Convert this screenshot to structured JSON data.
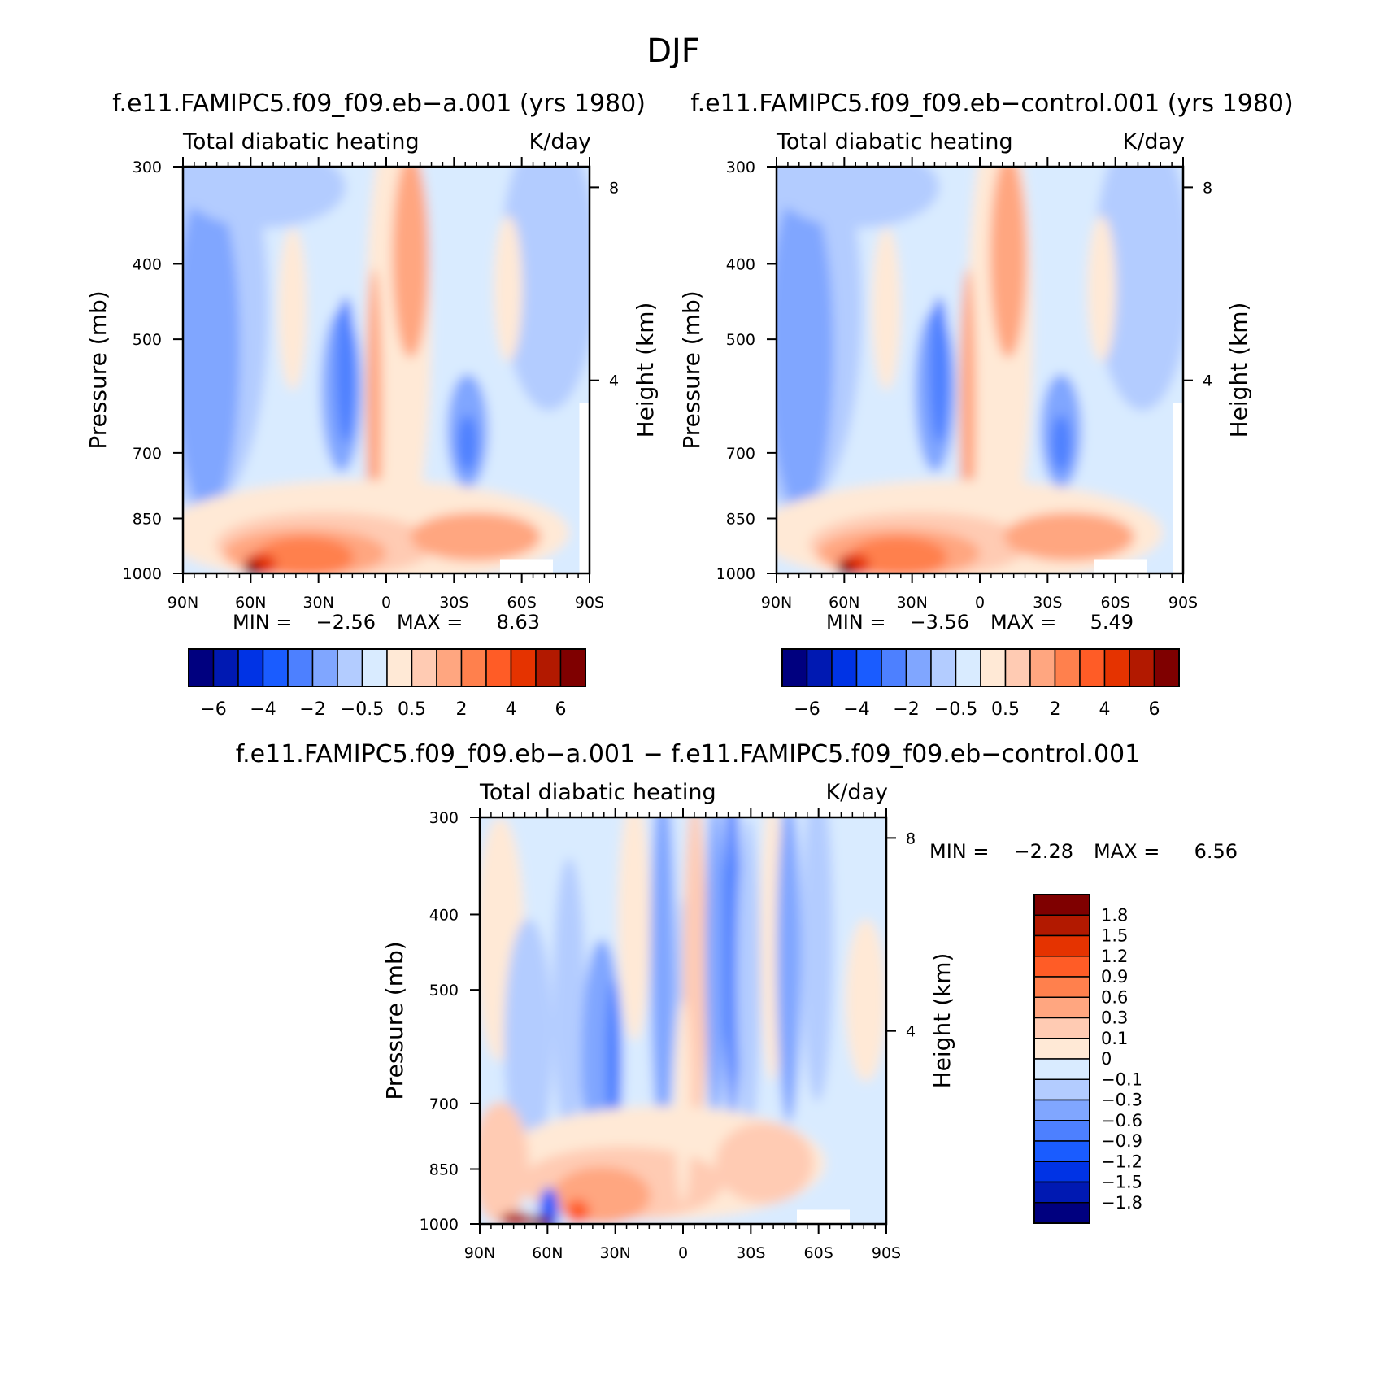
{
  "figure_title": "DJF",
  "colors": {
    "cbar_full": [
      "#00007f",
      "#0019b2",
      "#0033e5",
      "#1a5cff",
      "#4d80ff",
      "#80a6ff",
      "#b3ccff",
      "#d9ebff",
      "#ffe9d6",
      "#ffcbb3",
      "#ffa680",
      "#ff804d",
      "#ff5c26",
      "#e53300",
      "#b21900",
      "#7f0000"
    ],
    "cbar_diff": [
      "#7f0000",
      "#b21900",
      "#e53300",
      "#ff5c26",
      "#ff804d",
      "#ffa680",
      "#ffcbb3",
      "#ffe9d6",
      "#d9ebff",
      "#b3ccff",
      "#80a6ff",
      "#4d80ff",
      "#1a5cff",
      "#0033e5",
      "#0019b2",
      "#00007f"
    ]
  },
  "panels": {
    "a": {
      "title": "f.e11.FAMIPC5.f09_f09.eb−a.001 (yrs 1980)",
      "left_string": "Total diabatic heating",
      "right_string": "K/day",
      "ylabel": "Pressure (mb)",
      "ylabel_right": "Height (km)",
      "min_label": "MIN =",
      "min_value": "−2.56",
      "max_label": "MAX =",
      "max_value": "8.63"
    },
    "b": {
      "title": "f.e11.FAMIPC5.f09_f09.eb−control.001 (yrs 1980)",
      "left_string": "Total diabatic heating",
      "right_string": "K/day",
      "ylabel": "Pressure (mb)",
      "ylabel_right": "Height (km)",
      "min_label": "MIN =",
      "min_value": "−3.56",
      "max_label": "MAX =",
      "max_value": "5.49"
    },
    "c": {
      "title": "f.e11.FAMIPC5.f09_f09.eb−a.001 − f.e11.FAMIPC5.f09_f09.eb−control.001",
      "left_string": "Total diabatic heating",
      "right_string": "K/day",
      "ylabel": "Pressure (mb)",
      "ylabel_right": "Height (km)",
      "min_label": "MIN =",
      "min_value": "−2.28",
      "max_label": "MAX =",
      "max_value": "6.56"
    }
  },
  "chart_data": [
    {
      "type": "heatmap",
      "title": "f.e11.FAMIPC5.f09_f09.eb−a.001 (yrs 1980)",
      "xlabel": "",
      "ylabel": "Pressure (mb)",
      "ylabel_right": "Height (km)",
      "x_ticks": [
        "90N",
        "60N",
        "30N",
        "0",
        "30S",
        "60S",
        "90S"
      ],
      "y_ticks": [
        "300",
        "400",
        "500",
        "700",
        "850",
        "1000"
      ],
      "y_right_ticks": [
        "8",
        "4"
      ],
      "x_range": [
        90,
        -90
      ],
      "y_range": [
        1000,
        300
      ],
      "y_scale": "log",
      "levels": [
        "−6",
        "−4",
        "−2",
        "−0.5",
        "0.5",
        "2",
        "4",
        "6"
      ],
      "units": "K/day",
      "min": -2.56,
      "max": 8.63,
      "grid": false,
      "legend": "bottom"
    },
    {
      "type": "heatmap",
      "title": "f.e11.FAMIPC5.f09_f09.eb−control.001 (yrs 1980)",
      "xlabel": "",
      "ylabel": "Pressure (mb)",
      "ylabel_right": "Height (km)",
      "x_ticks": [
        "90N",
        "60N",
        "30N",
        "0",
        "30S",
        "60S",
        "90S"
      ],
      "y_ticks": [
        "300",
        "400",
        "500",
        "700",
        "850",
        "1000"
      ],
      "y_right_ticks": [
        "8",
        "4"
      ],
      "x_range": [
        90,
        -90
      ],
      "y_range": [
        1000,
        300
      ],
      "y_scale": "log",
      "levels": [
        "−6",
        "−4",
        "−2",
        "−0.5",
        "0.5",
        "2",
        "4",
        "6"
      ],
      "units": "K/day",
      "min": -3.56,
      "max": 5.49,
      "grid": false,
      "legend": "bottom"
    },
    {
      "type": "heatmap",
      "title": "f.e11.FAMIPC5.f09_f09.eb−a.001 − f.e11.FAMIPC5.f09_f09.eb−control.001",
      "xlabel": "",
      "ylabel": "Pressure (mb)",
      "ylabel_right": "Height (km)",
      "x_ticks": [
        "90N",
        "60N",
        "30N",
        "0",
        "30S",
        "60S",
        "90S"
      ],
      "y_ticks": [
        "300",
        "400",
        "500",
        "700",
        "850",
        "1000"
      ],
      "y_right_ticks": [
        "8",
        "4"
      ],
      "x_range": [
        90,
        -90
      ],
      "y_range": [
        1000,
        300
      ],
      "y_scale": "log",
      "levels": [
        "1.8",
        "1.5",
        "1.2",
        "0.9",
        "0.6",
        "0.3",
        "0.1",
        "0",
        "−0.1",
        "−0.3",
        "−0.6",
        "−0.9",
        "−1.2",
        "−1.5",
        "−1.8"
      ],
      "units": "K/day",
      "min": -2.28,
      "max": 6.56,
      "grid": false,
      "legend": "right"
    }
  ]
}
